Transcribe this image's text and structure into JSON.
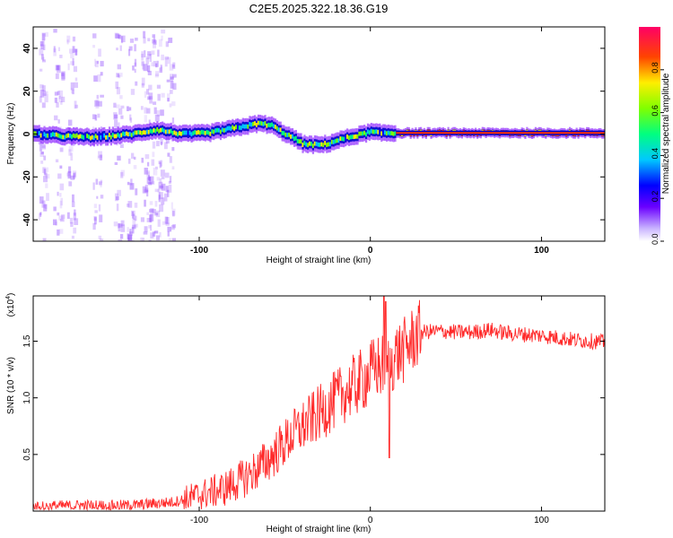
{
  "page_title": "C2E5.2025.322.18.36.G19",
  "chart_data": [
    {
      "type": "heatmap",
      "title": "C2E5.2025.322.18.36.G19",
      "xlabel": "Height of straight line (km)",
      "ylabel": "Frequency (Hz)",
      "xlim": [
        -197,
        137
      ],
      "ylim": [
        -50,
        50
      ],
      "x_ticks": [
        -100,
        0,
        100
      ],
      "y_ticks": [
        -40,
        -20,
        0,
        20,
        40
      ],
      "colorbar": {
        "label": "Normalized spectral amplitude",
        "range": [
          0,
          1
        ],
        "ticks": [
          "0.0",
          "0.2",
          "0.4",
          "0.6",
          "0.8"
        ]
      },
      "ridge": {
        "x": [
          -197,
          -180,
          -160,
          -140,
          -125,
          -110,
          -95,
          -85,
          -75,
          -65,
          -58,
          -52,
          -45,
          -40,
          -35,
          -30,
          -25,
          -20,
          -15,
          -10,
          -5,
          0,
          5,
          10,
          20,
          40,
          60,
          80,
          100,
          120,
          137
        ],
        "y": [
          0,
          -1,
          -1.5,
          0,
          2,
          0,
          0.5,
          2,
          3.5,
          5,
          4,
          1,
          -2,
          -4.5,
          -5,
          -5,
          -4.5,
          -3,
          -2,
          -1,
          0,
          1,
          0.5,
          0.5,
          0.5,
          0.5,
          0.5,
          0.5,
          0.5,
          0.5,
          0.5
        ]
      },
      "noise_columns_x": [
        -192,
        -183,
        -175,
        -160,
        -148,
        -140,
        -132,
        -128,
        -124,
        -118
      ],
      "grid": false,
      "legend": "none"
    },
    {
      "type": "line",
      "xlabel": "Height of straight line (km)",
      "ylabel": "SNR (10 * v/v)",
      "y_multiplier": "(x10",
      "y_multiplier_exp": "4",
      "xlim": [
        -197,
        137
      ],
      "ylim": [
        0,
        1.9
      ],
      "x_ticks": [
        -100,
        0,
        100
      ],
      "y_ticks": [
        "0.5",
        "1.0",
        "1.5"
      ],
      "y_tick_values": [
        0.5,
        1.0,
        1.5
      ],
      "series": [
        {
          "color": "#ff2a2a",
          "envelope": {
            "x": [
              -197,
              -170,
              -140,
              -115,
              -100,
              -85,
              -75,
              -65,
              -55,
              -45,
              -35,
              -25,
              -15,
              -5,
              0,
              5,
              10,
              15,
              20,
              25,
              30,
              40,
              50,
              60,
              70,
              80,
              90,
              100,
              110,
              120,
              130,
              137
            ],
            "y": [
              0.04,
              0.05,
              0.05,
              0.08,
              0.14,
              0.2,
              0.28,
              0.38,
              0.52,
              0.68,
              0.8,
              0.92,
              1.05,
              1.15,
              1.22,
              1.28,
              1.26,
              1.38,
              1.42,
              1.52,
              1.58,
              1.59,
              1.58,
              1.58,
              1.6,
              1.57,
              1.56,
              1.55,
              1.53,
              1.51,
              1.5,
              1.49
            ]
          },
          "spikes": [
            {
              "x": 8,
              "y": 1.92
            },
            {
              "x": 9,
              "y": 1.85
            },
            {
              "x": 11,
              "y": 0.47
            }
          ]
        }
      ],
      "grid": false,
      "legend": "none"
    }
  ]
}
